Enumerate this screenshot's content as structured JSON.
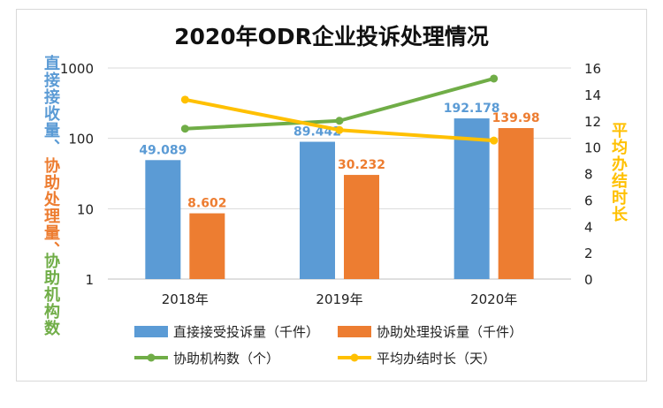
{
  "chart_data": {
    "type": "bar",
    "title": "2020年ODR企业投诉处理情况",
    "categories": [
      "2018年",
      "2019年",
      "2020年"
    ],
    "y_axis_left": {
      "scale": "log",
      "range": [
        1,
        1000
      ],
      "ticks": [
        "1",
        "10",
        "100",
        "1000"
      ]
    },
    "y_axis_right": {
      "scale": "linear",
      "range": [
        0,
        16
      ],
      "ticks": [
        "0",
        "2",
        "4",
        "6",
        "8",
        "10",
        "12",
        "14",
        "16"
      ]
    },
    "ylabel_left_parts": [
      "直接接收量、",
      "协助处理量、",
      "协助机构数"
    ],
    "ylabel_right": "平均办结时长",
    "bar_series": [
      {
        "name": "直接接受投诉量（千件）",
        "values": [
          49.089,
          89.442,
          192.178
        ],
        "labels": [
          "49.089",
          "89.442",
          "192.178"
        ],
        "color": "#5b9bd5"
      },
      {
        "name": "协助处理投诉量（千件）",
        "values": [
          8.602,
          30.232,
          139.98
        ],
        "labels": [
          "8.602",
          "30.232",
          "139.98"
        ],
        "color": "#ed7d31"
      }
    ],
    "line_series": [
      {
        "name": "协助机构数（个）",
        "values": [
          11.4,
          12.0,
          15.2
        ],
        "color": "#70ad47",
        "axis": "right"
      },
      {
        "name": "平均办结时长（天）",
        "values": [
          13.6,
          11.3,
          10.5
        ],
        "color": "#ffc000",
        "axis": "right"
      }
    ],
    "grid": true,
    "legend_position": "bottom"
  }
}
